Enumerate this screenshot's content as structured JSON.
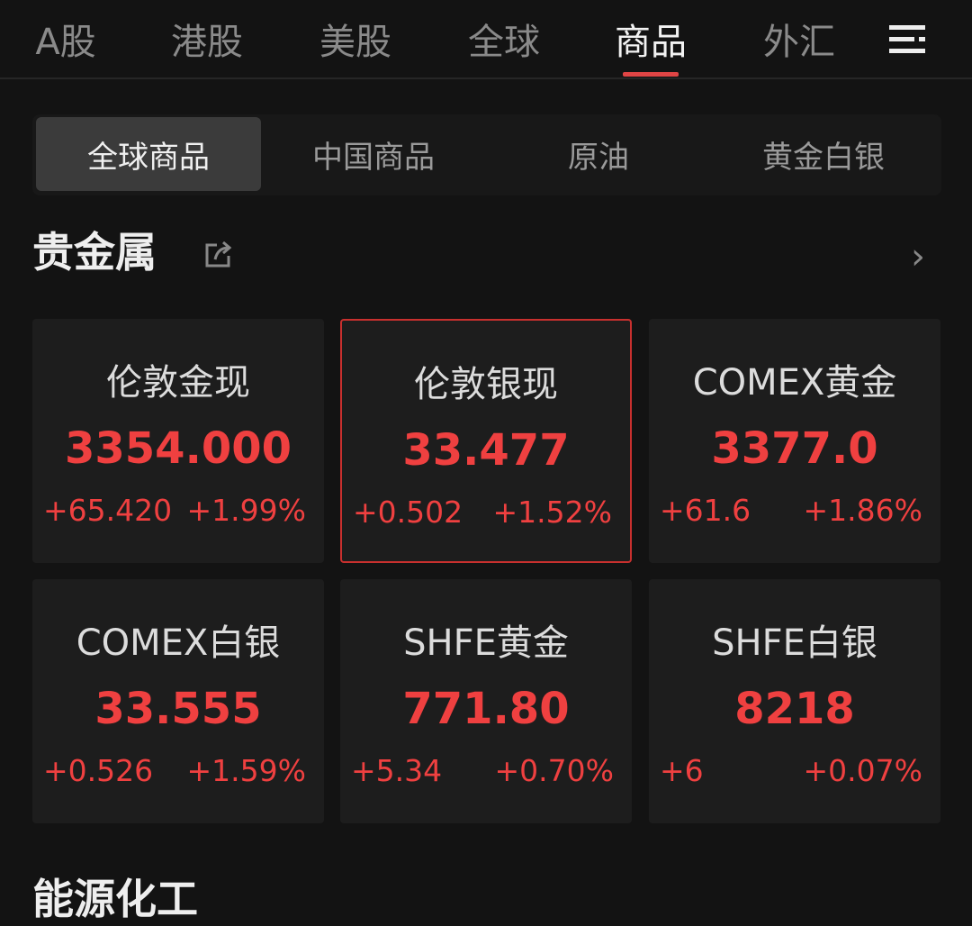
{
  "top_tabs": [
    "A股",
    "港股",
    "美股",
    "全球",
    "商品",
    "外汇"
  ],
  "active_top_tab": "商品",
  "sub_tabs": [
    "全球商品",
    "中国商品",
    "原油",
    "黄金白银"
  ],
  "active_sub_tab": "全球商品",
  "section": {
    "title": "贵金属"
  },
  "accent_color": "#e04545",
  "up_color": "#ef4040",
  "cards": [
    {
      "name": "伦敦金现",
      "price": "3354.000",
      "change": "+65.420",
      "percent": "+1.99%"
    },
    {
      "name": "伦敦银现",
      "price": "33.477",
      "change": "+0.502",
      "percent": "+1.52%",
      "selected": true
    },
    {
      "name": "COMEX黄金",
      "price": "3377.0",
      "change": "+61.6",
      "percent": "+1.86%"
    },
    {
      "name": "COMEX白银",
      "price": "33.555",
      "change": "+0.526",
      "percent": "+1.59%"
    },
    {
      "name": "SHFE黄金",
      "price": "771.80",
      "change": "+5.34",
      "percent": "+0.70%"
    },
    {
      "name": "SHFE白银",
      "price": "8218",
      "change": "+6",
      "percent": "+0.07%"
    }
  ],
  "next_section": {
    "title": "能源化工"
  }
}
